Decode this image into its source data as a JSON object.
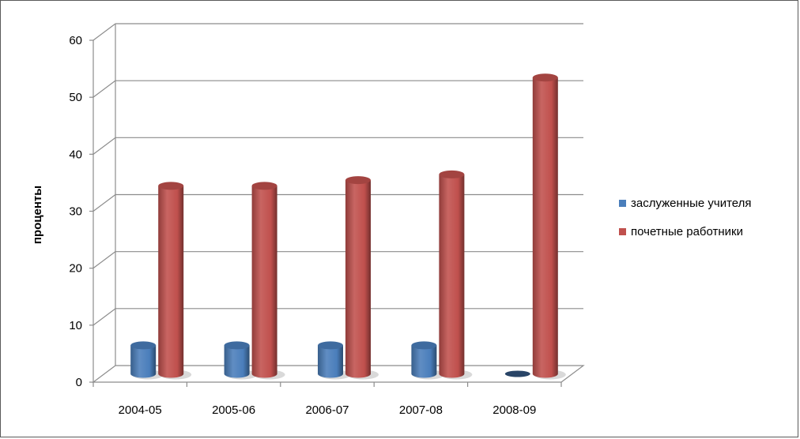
{
  "chart_data": {
    "type": "bar",
    "categories": [
      "2004-05",
      "2005-06",
      "2006-07",
      "2007-08",
      "2008-09"
    ],
    "series": [
      {
        "name": "заслуженные учителя",
        "values": [
          5,
          5,
          5,
          5,
          0
        ],
        "color": "#4a7ebb"
      },
      {
        "name": "почетные работники",
        "values": [
          33,
          33,
          34,
          35,
          52
        ],
        "color": "#c0504d"
      }
    ],
    "title": "",
    "xlabel": "",
    "ylabel": "проценты",
    "ylim": [
      0,
      60
    ],
    "yticks": [
      0,
      10,
      20,
      30,
      40,
      50,
      60
    ],
    "grid": true,
    "legend_position": "right"
  }
}
